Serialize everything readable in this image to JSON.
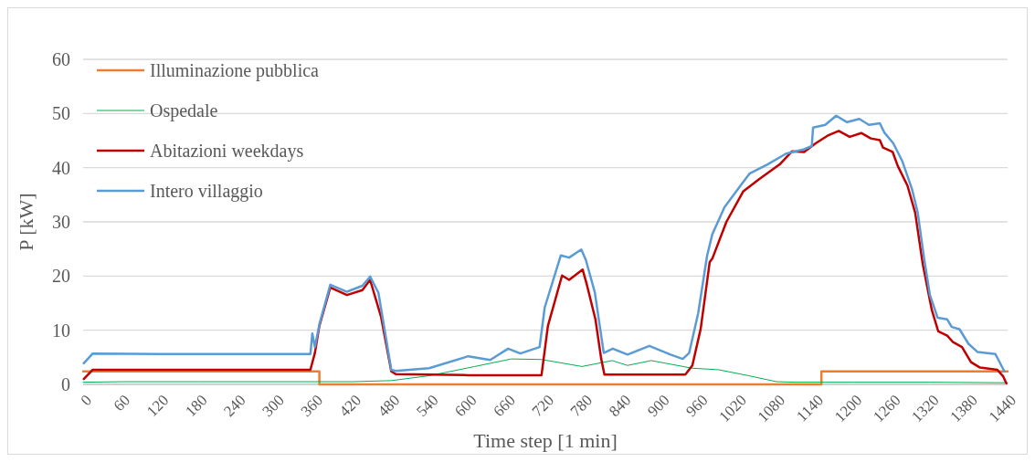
{
  "chart_data": {
    "type": "line",
    "xlabel": "Time step [1 min]",
    "ylabel": "P [kW]",
    "xlim": [
      0,
      1440
    ],
    "xticks": [
      0,
      60,
      120,
      180,
      240,
      300,
      360,
      420,
      480,
      540,
      600,
      660,
      720,
      780,
      840,
      900,
      960,
      1020,
      1080,
      1140,
      1200,
      1260,
      1320,
      1380,
      1440
    ],
    "ylim": [
      0,
      60
    ],
    "yticks": [
      0,
      10,
      20,
      30,
      40,
      50,
      60
    ],
    "grid": "y",
    "legend": "top left",
    "line_style": "solid",
    "marker": "none",
    "series": [
      {
        "name": "Illuminazione pubblica",
        "color": "#ed7d31",
        "x": [
          0,
          368,
          368,
          1150,
          1150,
          1440
        ],
        "values": [
          2.4,
          2.4,
          0,
          0,
          2.4,
          2.4
        ]
      },
      {
        "name": "Ospedale",
        "color": "#00b050",
        "x": [
          0,
          60,
          180,
          300,
          420,
          480,
          539,
          610,
          667,
          714,
          777,
          824,
          848,
          885,
          948,
          990,
          1037,
          1080,
          1110,
          1200,
          1320,
          1440
        ],
        "values": [
          0.4,
          0.5,
          0.5,
          0.5,
          0.5,
          0.7,
          1.6,
          3.3,
          4.7,
          4.6,
          3.3,
          4.4,
          3.5,
          4.4,
          3.0,
          2.7,
          1.6,
          0.5,
          0.4,
          0.4,
          0.4,
          0.3
        ]
      },
      {
        "name": "Abitazioni weekdays",
        "color": "#c00000",
        "x": [
          1,
          15,
          120,
          240,
          354,
          361,
          368,
          385,
          411,
          435,
          447,
          464,
          480,
          487,
          600,
          714,
          724,
          746,
          757,
          778,
          784,
          798,
          807,
          812,
          938,
          949,
          962,
          976,
          980,
          1002,
          1028,
          1052,
          1085,
          1104,
          1123,
          1141,
          1161,
          1177,
          1194,
          1212,
          1227,
          1241,
          1246,
          1261,
          1269,
          1284,
          1296,
          1308,
          1322,
          1332,
          1346,
          1355,
          1369,
          1383,
          1397,
          1424,
          1433,
          1438
        ],
        "values": [
          1.0,
          2.7,
          2.7,
          2.7,
          2.7,
          5.8,
          10.8,
          17.9,
          16.5,
          17.4,
          19.3,
          12.5,
          2.4,
          1.9,
          1.7,
          1.7,
          10.8,
          20.1,
          19.3,
          21.2,
          18.7,
          12.0,
          4.7,
          1.8,
          1.8,
          3.5,
          10.3,
          22.6,
          23.2,
          30.0,
          35.6,
          37.8,
          40.6,
          43.0,
          42.9,
          44.5,
          46.0,
          46.8,
          45.7,
          46.4,
          45.4,
          45.1,
          43.7,
          42.9,
          40.3,
          36.7,
          31.7,
          22.1,
          13.7,
          9.8,
          9.0,
          7.8,
          6.9,
          4.1,
          3.1,
          2.7,
          1.5,
          0.2
        ]
      },
      {
        "name": "Intero villaggio",
        "color": "#5b9bd5",
        "x": [
          1,
          15,
          120,
          240,
          354,
          357,
          361,
          368,
          385,
          411,
          435,
          447,
          460,
          480,
          487,
          539,
          600,
          634,
          662,
          681,
          711,
          719,
          744,
          757,
          776,
          783,
          797,
          811,
          825,
          848,
          882,
          915,
          934,
          944,
          958,
          972,
          980,
          999,
          1024,
          1038,
          1066,
          1095,
          1123,
          1135,
          1137,
          1156,
          1173,
          1190,
          1209,
          1224,
          1241,
          1248,
          1262,
          1276,
          1291,
          1300,
          1310,
          1319,
          1331,
          1346,
          1353,
          1365,
          1379,
          1393,
          1421,
          1435
        ],
        "values": [
          3.9,
          5.7,
          5.6,
          5.6,
          5.6,
          9.4,
          6.9,
          11.1,
          18.4,
          17.1,
          18.2,
          19.9,
          16.9,
          2.7,
          2.5,
          3.0,
          5.2,
          4.5,
          6.6,
          5.7,
          6.9,
          14.2,
          23.8,
          23.4,
          24.9,
          23.0,
          17.0,
          5.8,
          6.6,
          5.5,
          7.1,
          5.5,
          4.7,
          5.8,
          13.1,
          23.8,
          27.7,
          32.7,
          36.7,
          38.9,
          40.6,
          42.6,
          43.4,
          44.0,
          47.4,
          47.9,
          49.6,
          48.4,
          49.0,
          47.9,
          48.2,
          46.5,
          44.5,
          41.2,
          36.1,
          31.7,
          23.2,
          16.5,
          12.3,
          12.0,
          10.6,
          10.2,
          7.5,
          6.0,
          5.6,
          2.4
        ]
      }
    ]
  }
}
